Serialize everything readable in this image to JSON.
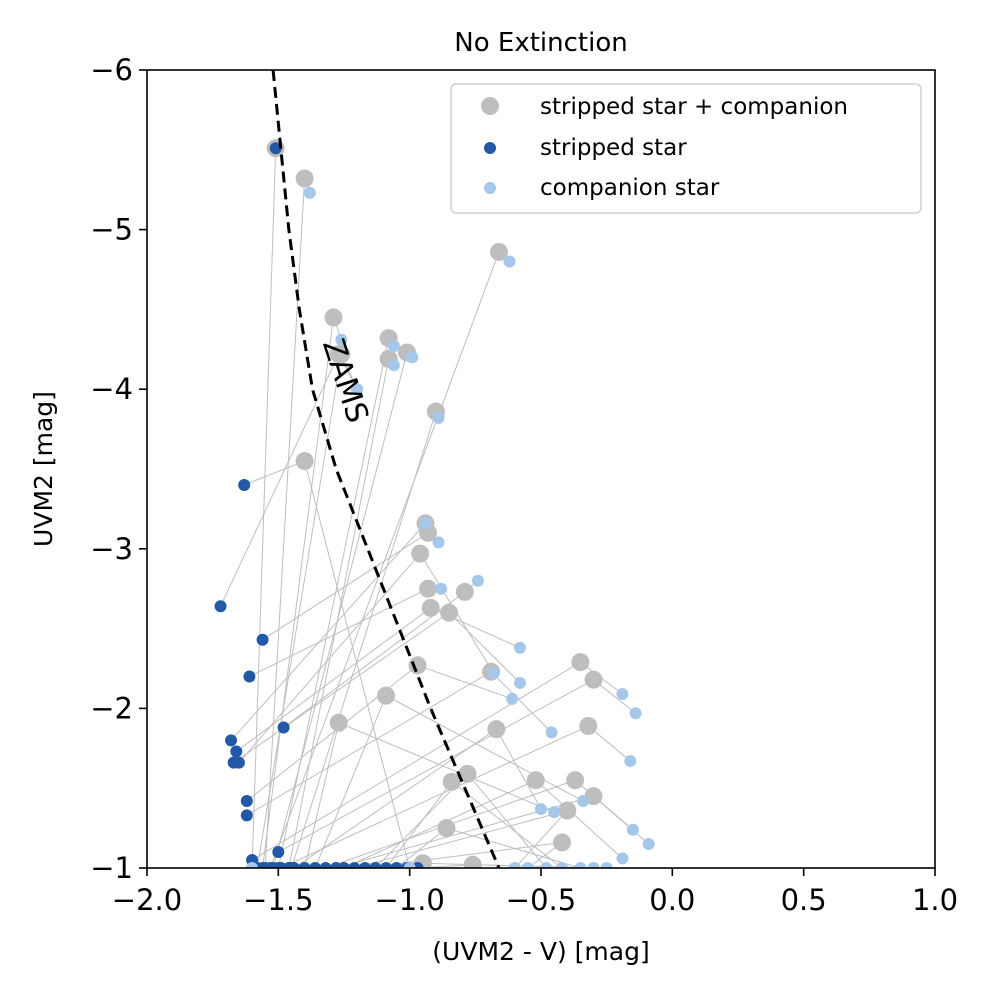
{
  "chart_data": {
    "type": "scatter",
    "title": "No Extinction",
    "xlabel": "(UVM2 - V) [mag]",
    "ylabel": "UVM2 [mag]",
    "xlim": [
      -2.0,
      1.0
    ],
    "ylim": [
      -1,
      -6
    ],
    "xticks": [
      -2.0,
      -1.5,
      -1.0,
      -0.5,
      0.0,
      0.5,
      1.0
    ],
    "xtick_labels": [
      "−2.0",
      "−1.5",
      "−1.0",
      "−0.5",
      "0.0",
      "0.5",
      "1.0"
    ],
    "yticks": [
      -1,
      -2,
      -3,
      -4,
      -5,
      -6
    ],
    "ytick_labels": [
      "−1",
      "−2",
      "−3",
      "−4",
      "−5",
      "−6"
    ],
    "legend_position": "top-right",
    "colors": {
      "combined": "#bebebe",
      "stripped": "#2258a5",
      "companion": "#a5c8ea",
      "link": "#bebebe",
      "zams": "#000000"
    },
    "series": [
      {
        "name": "stripped star + companion",
        "key": "combined"
      },
      {
        "name": "stripped star",
        "key": "stripped"
      },
      {
        "name": "companion star",
        "key": "companion"
      }
    ],
    "annotation": {
      "text": "ZAMS",
      "x": -1.25,
      "y": -4.05
    },
    "zams_line": [
      [
        -1.52,
        -6.0
      ],
      [
        -1.49,
        -5.5
      ],
      [
        -1.46,
        -5.0
      ],
      [
        -1.42,
        -4.5
      ],
      [
        -1.37,
        -4.0
      ],
      [
        -1.28,
        -3.5
      ],
      [
        -1.16,
        -3.0
      ],
      [
        -1.04,
        -2.5
      ],
      [
        -0.92,
        -2.0
      ],
      [
        -0.79,
        -1.5
      ],
      [
        -0.66,
        -1.0
      ]
    ],
    "systems": [
      {
        "stripped": [
          -1.51,
          -5.51
        ],
        "companion": [
          -1.6,
          -1.0
        ],
        "combined": [
          -1.51,
          -5.51
        ]
      },
      {
        "stripped": [
          -1.55,
          -1.0
        ],
        "companion": [
          -1.38,
          -5.23
        ],
        "combined": [
          -1.4,
          -5.32
        ]
      },
      {
        "stripped": [
          -1.53,
          -1.0
        ],
        "companion": [
          -0.62,
          -4.8
        ],
        "combined": [
          -0.66,
          -4.86
        ]
      },
      {
        "stripped": [
          -1.56,
          -1.0
        ],
        "companion": [
          -1.26,
          -4.31
        ],
        "combined": [
          -1.29,
          -4.45
        ]
      },
      {
        "stripped": [
          -1.58,
          -1.0
        ],
        "companion": [
          -1.2,
          -4.0
        ],
        "combined": [
          -1.26,
          -4.22
        ]
      },
      {
        "stripped": [
          -1.5,
          -1.0
        ],
        "companion": [
          -1.06,
          -4.27
        ],
        "combined": [
          -1.08,
          -4.32
        ]
      },
      {
        "stripped": [
          -1.52,
          -1.0
        ],
        "companion": [
          -0.99,
          -4.2
        ],
        "combined": [
          -1.01,
          -4.23
        ]
      },
      {
        "stripped": [
          -1.46,
          -1.0
        ],
        "companion": [
          -1.06,
          -4.15
        ],
        "combined": [
          -1.08,
          -4.19
        ]
      },
      {
        "stripped": [
          -1.45,
          -1.0
        ],
        "companion": [
          -0.89,
          -3.82
        ],
        "combined": [
          -0.9,
          -3.86
        ]
      },
      {
        "stripped": [
          -1.63,
          -3.4
        ],
        "companion": [
          -1.0,
          -1.0
        ],
        "combined": [
          -1.4,
          -3.55
        ]
      },
      {
        "stripped": [
          -1.72,
          -2.64
        ],
        "companion": [
          -1.2,
          -4.0
        ],
        "combined": [
          -1.27,
          -4.22
        ]
      },
      {
        "stripped": [
          -1.56,
          -2.43
        ],
        "companion": [
          -0.89,
          -3.04
        ],
        "combined": [
          -0.93,
          -3.1
        ]
      },
      {
        "stripped": [
          -1.61,
          -2.2
        ],
        "companion": [
          -0.88,
          -2.75
        ],
        "combined": [
          -0.93,
          -2.75
        ]
      },
      {
        "stripped": [
          -1.48,
          -1.88
        ],
        "companion": [
          -0.74,
          -2.8
        ],
        "combined": [
          -0.79,
          -2.73
        ]
      },
      {
        "stripped": [
          -1.68,
          -1.8
        ],
        "companion": [
          -0.94,
          -3.16
        ],
        "combined": [
          -0.94,
          -3.16
        ]
      },
      {
        "stripped": [
          -1.66,
          -1.73
        ],
        "companion": [
          -0.58,
          -2.38
        ],
        "combined": [
          -0.92,
          -2.63
        ]
      },
      {
        "stripped": [
          -1.67,
          -1.66
        ],
        "companion": [
          -0.58,
          -2.16
        ],
        "combined": [
          -0.85,
          -2.6
        ]
      },
      {
        "stripped": [
          -1.65,
          -1.66
        ],
        "companion": [
          -0.68,
          -2.22
        ],
        "combined": [
          -0.96,
          -2.97
        ]
      },
      {
        "stripped": [
          -1.62,
          -1.42
        ],
        "companion": [
          -0.61,
          -2.06
        ],
        "combined": [
          -0.97,
          -2.27
        ]
      },
      {
        "stripped": [
          -1.62,
          -1.33
        ],
        "companion": [
          -0.46,
          -1.85
        ],
        "combined": [
          -0.69,
          -2.23
        ]
      },
      {
        "stripped": [
          -1.6,
          -1.05
        ],
        "companion": [
          -0.19,
          -2.09
        ],
        "combined": [
          -0.35,
          -2.29
        ]
      },
      {
        "stripped": [
          -1.5,
          -1.1
        ],
        "companion": [
          -0.14,
          -1.97
        ],
        "combined": [
          -0.3,
          -2.18
        ]
      },
      {
        "stripped": [
          -1.49,
          -1.0
        ],
        "companion": [
          -0.16,
          -1.67
        ],
        "combined": [
          -0.32,
          -1.89
        ]
      },
      {
        "stripped": [
          -1.44,
          -1.0
        ],
        "companion": [
          -0.5,
          -1.37
        ],
        "combined": [
          -0.67,
          -1.87
        ]
      },
      {
        "stripped": [
          -1.4,
          -1.0
        ],
        "companion": [
          -0.45,
          -1.35
        ],
        "combined": [
          -1.27,
          -1.91
        ]
      },
      {
        "stripped": [
          -1.36,
          -1.0
        ],
        "companion": [
          -0.34,
          -1.42
        ],
        "combined": [
          -1.09,
          -2.08
        ]
      },
      {
        "stripped": [
          -1.32,
          -1.0
        ],
        "companion": [
          -0.15,
          -1.24
        ],
        "combined": [
          -0.37,
          -1.55
        ]
      },
      {
        "stripped": [
          -1.28,
          -1.0
        ],
        "companion": [
          -0.09,
          -1.15
        ],
        "combined": [
          -0.3,
          -1.45
        ]
      },
      {
        "stripped": [
          -1.25,
          -1.0
        ],
        "companion": [
          -0.19,
          -1.06
        ],
        "combined": [
          -0.52,
          -1.55
        ]
      },
      {
        "stripped": [
          -1.21,
          -1.0
        ],
        "companion": [
          -0.6,
          -1.0
        ],
        "combined": [
          -0.4,
          -1.36
        ]
      },
      {
        "stripped": [
          -1.17,
          -1.0
        ],
        "companion": [
          -0.55,
          -1.0
        ],
        "combined": [
          -0.42,
          -1.16
        ]
      },
      {
        "stripped": [
          -1.13,
          -1.0
        ],
        "companion": [
          -0.48,
          -1.0
        ],
        "combined": [
          -0.78,
          -1.59
        ]
      },
      {
        "stripped": [
          -1.09,
          -1.0
        ],
        "companion": [
          -0.42,
          -1.0
        ],
        "combined": [
          -0.84,
          -1.54
        ]
      },
      {
        "stripped": [
          -1.05,
          -1.0
        ],
        "companion": [
          -0.35,
          -1.0
        ],
        "combined": [
          -0.86,
          -1.25
        ]
      },
      {
        "stripped": [
          -1.01,
          -1.0
        ],
        "companion": [
          -0.3,
          -1.0
        ],
        "combined": [
          -0.95,
          -1.03
        ]
      },
      {
        "stripped": [
          -0.97,
          -1.0
        ],
        "companion": [
          -0.25,
          -1.0
        ],
        "combined": [
          -0.76,
          -1.02
        ]
      }
    ]
  }
}
